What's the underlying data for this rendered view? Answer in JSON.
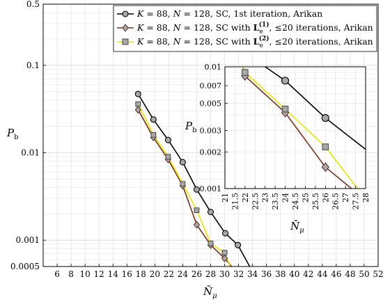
{
  "chart_data": [
    {
      "type": "line",
      "ylabel": "P_b",
      "xlabel": "N̄_μ",
      "x_scale": "linear",
      "y_scale": "log",
      "xlim": [
        4,
        52
      ],
      "ylim": [
        0.0005,
        0.5
      ],
      "grid": true,
      "legend_position": "top-right",
      "x_ticks": [
        "6",
        "8",
        "10",
        "12",
        "14",
        "16",
        "18",
        "20",
        "22",
        "24",
        "26",
        "28",
        "30",
        "32",
        "34",
        "36",
        "38",
        "40",
        "42",
        "44",
        "46",
        "48",
        "50",
        "52"
      ],
      "y_ticks": [
        "0.0005",
        "0.001",
        "0.01",
        "0.1",
        "0.5"
      ],
      "series": [
        {
          "name": "K = 88, N = 128, SC, 1st iteration, Arikan",
          "color": "#000000",
          "fill": "#a8a8a8",
          "marker": "circle",
          "x": [
            17.6,
            19.8,
            21.9,
            24.0,
            26.0,
            28.0,
            30.1,
            31.9,
            33.6
          ],
          "y": [
            0.047,
            0.024,
            0.014,
            0.0078,
            0.0038,
            0.0021,
            0.0012,
            0.00088,
            0.0005
          ]
        },
        {
          "name": "K = 88, N = 128, SC with L_e^(1), ≤20 iterations, Arikan",
          "color": "#7a2e1a",
          "fill": "#a8a8a8",
          "marker": "diamond",
          "x": [
            17.6,
            19.8,
            21.9,
            24.0,
            26.0,
            28.0,
            30.0,
            31.0
          ],
          "y": [
            0.031,
            0.015,
            0.0084,
            0.0042,
            0.0015,
            0.00088,
            0.00062,
            0.0005
          ]
        },
        {
          "name": "K = 88, N = 128, SC with L_e^(2), ≤20 iterations, Arikan",
          "color": "#e6e600",
          "fill": "#a8a8a8",
          "marker": "square",
          "x": [
            17.6,
            19.8,
            21.9,
            24.0,
            26.0,
            28.0,
            30.0,
            30.8
          ],
          "y": [
            0.036,
            0.016,
            0.009,
            0.0044,
            0.0022,
            0.00092,
            0.00072,
            0.0005
          ]
        }
      ]
    },
    {
      "type": "line",
      "role": "inset",
      "ylabel": "P_b",
      "xlabel": "N̄_μ",
      "x_scale": "linear",
      "y_scale": "log",
      "xlim": [
        21,
        28
      ],
      "ylim": [
        0.001,
        0.01
      ],
      "x_ticks": [
        "21",
        "21.5",
        "22",
        "22.5",
        "23",
        "23.5",
        "24",
        "24.5",
        "25",
        "25.5",
        "26",
        "26.5",
        "27",
        "27.5",
        "28"
      ],
      "y_ticks": [
        "0.001",
        "0.002",
        "0.003",
        "0.005",
        "0.007",
        "0.01"
      ],
      "series": [
        {
          "name": "1st iteration",
          "color": "#000000",
          "fill": "#a8a8a8",
          "marker": "circle",
          "x": [
            23.0,
            24.0,
            26.0,
            28.0
          ],
          "y": [
            0.01,
            0.0077,
            0.0038,
            0.0021
          ]
        },
        {
          "name": "L_e^(1)",
          "color": "#7a2e1a",
          "fill": "#a8a8a8",
          "marker": "diamond",
          "x": [
            21.9,
            22.0,
            24.0,
            26.0,
            27.3
          ],
          "y": [
            0.01,
            0.0084,
            0.0042,
            0.0015,
            0.001
          ]
        },
        {
          "name": "L_e^(2)",
          "color": "#e6e600",
          "fill": "#a8a8a8",
          "marker": "square",
          "x": [
            21.9,
            22.0,
            24.0,
            26.0,
            27.6
          ],
          "y": [
            0.01,
            0.009,
            0.0045,
            0.0022,
            0.001
          ]
        }
      ]
    }
  ],
  "legend": [
    {
      "pre": "K",
      "eq1": " = 88, ",
      "n": "N",
      "eq2": " = 128, SC, 1st iteration, Arikan",
      "sub": "",
      "sup": "",
      "post": ""
    },
    {
      "pre": "K",
      "eq1": " = 88, ",
      "n": "N",
      "eq2": " = 128, SC with ",
      "L": "L",
      "sub": "e",
      "sup": "(1)",
      "post": ", ≤20 iterations, Arikan"
    },
    {
      "pre": "K",
      "eq1": " = 88, ",
      "n": "N",
      "eq2": " = 128, SC with ",
      "L": "L",
      "sub": "e",
      "sup": "(2)",
      "post": ", ≤20 iterations, Arikan"
    }
  ],
  "labels": {
    "p": "P",
    "b": "b",
    "n": "N̄",
    "mu": "μ"
  }
}
